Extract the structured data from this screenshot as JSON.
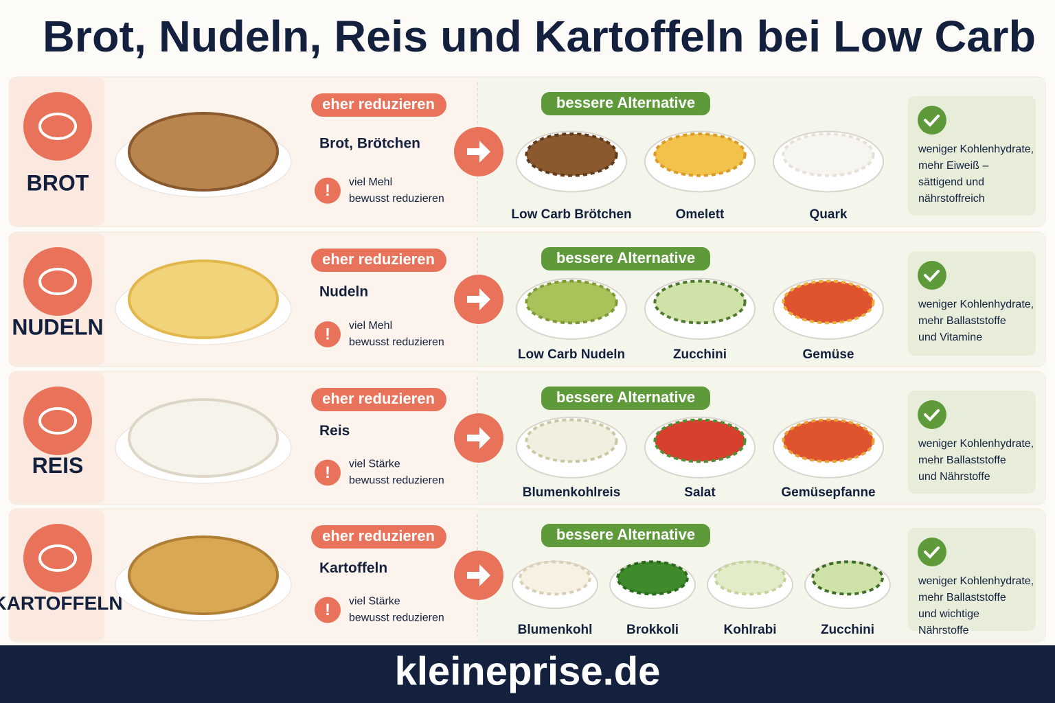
{
  "title": "Brot, Nudeln, Reis und Kartoffeln bei Low Carb",
  "rows": [
    {
      "category": "BROT",
      "reduce_label": "eher reduzieren",
      "item": "Brot, Brötchen",
      "warning": [
        "viel Mehl",
        "bewusst reduzieren"
      ],
      "alt_label": "bessere Alternative",
      "alternatives": [
        "Low Carb Brötchen",
        "Omelett",
        "Quark"
      ],
      "benefit": [
        "weniger Kohlenhydrate,",
        "mehr Eiweiß –",
        "sättigend und",
        "nährstoffreich"
      ]
    },
    {
      "category": "NUDELN",
      "reduce_label": "eher reduzieren",
      "item": "Nudeln",
      "warning": [
        "viel Mehl",
        "bewusst reduzieren"
      ],
      "alt_label": "bessere Alternative",
      "alternatives": [
        "Low Carb Nudeln",
        "Zucchini",
        "Gemüse"
      ],
      "benefit": [
        "weniger Kohlenhydrate,",
        "mehr Ballaststoffe",
        "und Vitamine"
      ]
    },
    {
      "category": "REIS",
      "reduce_label": "eher reduzieren",
      "item": "Reis",
      "warning": [
        "viel Stärke",
        "bewusst reduzieren"
      ],
      "alt_label": "bessere Alternative",
      "alternatives": [
        "Blumenkohlreis",
        "Salat",
        "Gemüsepfanne"
      ],
      "benefit": [
        "weniger Kohlenhydrate,",
        "mehr Ballaststoffe",
        "und Nährstoffe"
      ]
    },
    {
      "category": "KARTOFFELN",
      "reduce_label": "eher reduzieren",
      "item": "Kartoffeln",
      "warning": [
        "viel Stärke",
        "bewusst reduzieren"
      ],
      "alt_label": "bessere Alternative",
      "alternatives": [
        "Blumenkohl",
        "Brokkoli",
        "Kohlrabi",
        "Zucchini"
      ],
      "benefit": [
        "weniger Kohlenhydrate,",
        "mehr Ballaststoffe",
        "und wichtige",
        "Nährstoffe"
      ]
    }
  ],
  "footer": "kleineprise.de"
}
